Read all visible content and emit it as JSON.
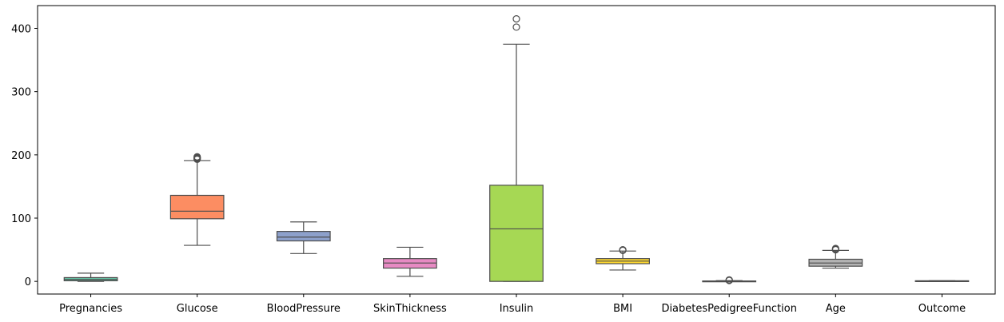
{
  "chart_data": {
    "type": "box",
    "title": "",
    "xlabel": "",
    "ylabel": "",
    "ylim": [
      -20,
      436
    ],
    "yticks": [
      0,
      100,
      200,
      300,
      400
    ],
    "ytick_labels": [
      "0",
      "100",
      "200",
      "300",
      "400"
    ],
    "grid": false,
    "categories": [
      "Pregnancies",
      "Glucose",
      "BloodPressure",
      "SkinThickness",
      "Insulin",
      "BMI",
      "DiabetesPedigreeFunction",
      "Age",
      "Outcome"
    ],
    "boxes": [
      {
        "label": "Pregnancies",
        "color": "#66c2a5",
        "whisker_low": 0,
        "q1": 1,
        "median": 3,
        "q3": 6,
        "whisker_high": 13,
        "outliers": []
      },
      {
        "label": "Glucose",
        "color": "#fc8d62",
        "whisker_low": 57,
        "q1": 99,
        "median": 111,
        "q3": 136,
        "whisker_high": 191,
        "outliers": [
          193,
          194,
          195,
          196,
          197
        ]
      },
      {
        "label": "BloodPressure",
        "color": "#8da0cb",
        "whisker_low": 44,
        "q1": 64,
        "median": 70,
        "q3": 79,
        "whisker_high": 94,
        "outliers": []
      },
      {
        "label": "SkinThickness",
        "color": "#e78ac3",
        "whisker_low": 8,
        "q1": 21,
        "median": 29,
        "q3": 36,
        "whisker_high": 54,
        "outliers": []
      },
      {
        "label": "Insulin",
        "color": "#a6d854",
        "whisker_low": 0,
        "q1": 0,
        "median": 83,
        "q3": 152,
        "whisker_high": 375,
        "outliers": [
          402,
          415
        ]
      },
      {
        "label": "BMI",
        "color": "#ffd92f",
        "whisker_low": 18,
        "q1": 28,
        "median": 32,
        "q3": 36,
        "whisker_high": 48,
        "outliers": [
          49,
          50
        ]
      },
      {
        "label": "DiabetesPedigreeFunction",
        "color": "#e5c494",
        "whisker_low": 0.08,
        "q1": 0.24,
        "median": 0.37,
        "q3": 0.63,
        "whisker_high": 1.2,
        "outliers": [
          1.4,
          1.9,
          2.3
        ]
      },
      {
        "label": "Age",
        "color": "#b3b3b3",
        "whisker_low": 21,
        "q1": 24,
        "median": 29,
        "q3": 35,
        "whisker_high": 49,
        "outliers": [
          50,
          51,
          52
        ]
      },
      {
        "label": "Outcome",
        "color": "#66c2a5",
        "whisker_low": 0,
        "q1": 0,
        "median": 0,
        "q3": 1,
        "whisker_high": 1,
        "outliers": []
      }
    ]
  }
}
